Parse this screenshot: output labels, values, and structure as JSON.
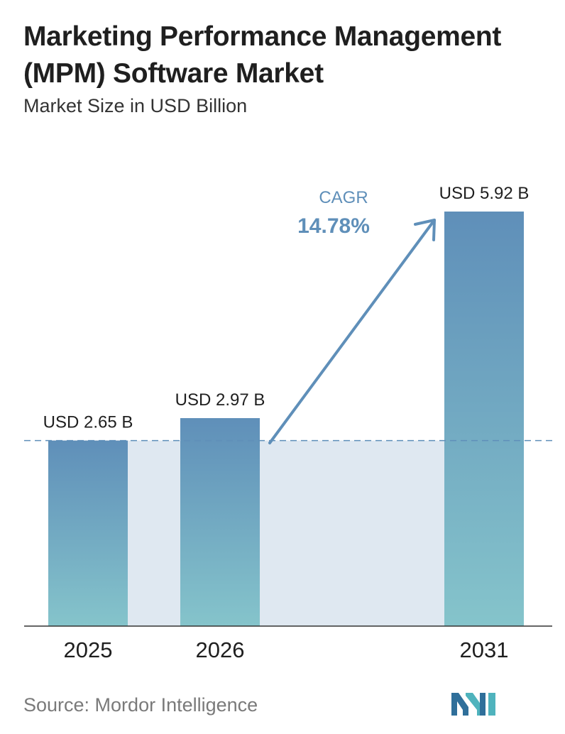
{
  "header": {
    "title": "Marketing Performance Management (MPM) Software Market",
    "subtitle": "Market Size in USD Billion"
  },
  "chart_data": {
    "type": "bar",
    "categories": [
      "2025",
      "2026",
      "2031"
    ],
    "values": [
      2.65,
      2.97,
      5.92
    ],
    "value_labels": [
      "USD 2.65 B",
      "USD 2.97 B",
      "USD 5.92 B"
    ],
    "title": "Marketing Performance Management (MPM) Software Market",
    "subtitle": "Market Size in USD Billion",
    "ylim": [
      0,
      5.92
    ],
    "grid": false,
    "annotation": {
      "label": "CAGR",
      "value": "14.78%"
    },
    "colors": {
      "bar_top": "#5f8fb9",
      "bar_bottom": "#85c4cb",
      "fill_area": "#dfe8f1",
      "baseline_dash": "#5f8fb9",
      "arrow": "#5f8fb9"
    }
  },
  "footer": {
    "source": "Source:  Mordor Intelligence",
    "logo_icon": "mordor-intelligence-logo-icon"
  }
}
